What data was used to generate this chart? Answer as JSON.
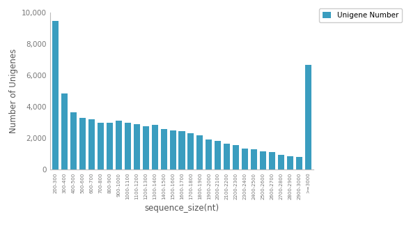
{
  "categories": [
    "200-300",
    "300-400",
    "400-500",
    "500-600",
    "600-700",
    "700-800",
    "800-900",
    "900-1000",
    "1000-1100",
    "1100-1200",
    "1200-1300",
    "1300-1400",
    "1400-1500",
    "1500-1600",
    "1600-1700",
    "1700-1800",
    "1800-1900",
    "1900-2000",
    "2000-2100",
    "2100-2200",
    "2200-2300",
    "2300-2400",
    "2400-2500",
    "2500-2600",
    "2600-2700",
    "2700-2800",
    "2800-2900",
    "2900-3000",
    ">=3000"
  ],
  "values": [
    9480,
    4850,
    3620,
    3300,
    3180,
    2980,
    2960,
    3080,
    2980,
    2870,
    2750,
    2820,
    2560,
    2470,
    2420,
    2320,
    2150,
    1900,
    1830,
    1620,
    1530,
    1340,
    1290,
    1150,
    1090,
    930,
    830,
    800,
    6680
  ],
  "bar_color": "#3a9dbf",
  "xlabel": "sequence_size(nt)",
  "ylabel": "Number of Unigenes",
  "ylim": [
    0,
    10000
  ],
  "yticks": [
    0,
    2000,
    4000,
    6000,
    8000,
    10000
  ],
  "legend_label": "Unigene Number",
  "legend_color": "#3a9dbf",
  "background_color": "#ffffff"
}
